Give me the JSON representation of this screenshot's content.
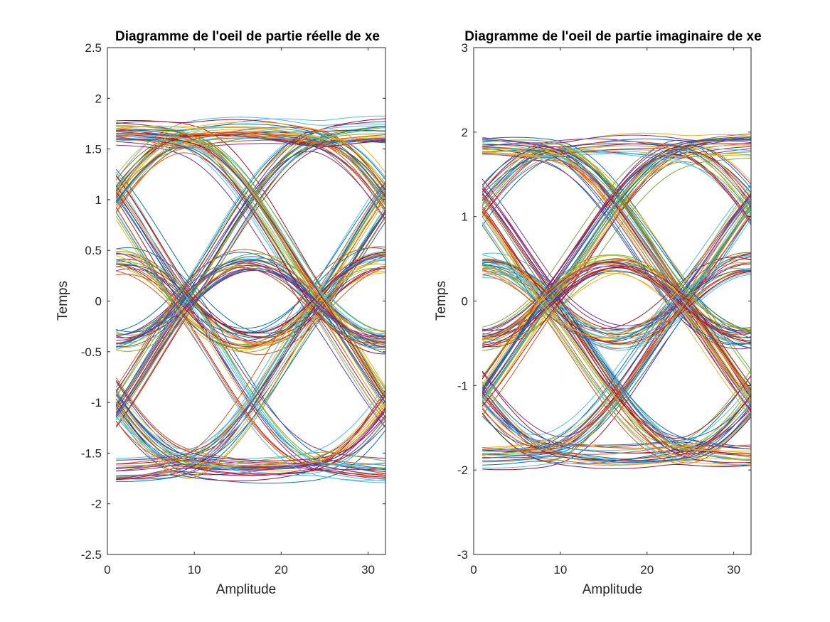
{
  "chart_data": [
    {
      "type": "line",
      "title": "Diagramme de l'oeil de partie réelle de xe",
      "xlabel": "Amplitude",
      "ylabel": "Temps",
      "xlim": [
        0,
        32
      ],
      "ylim": [
        -2.5,
        2.5
      ],
      "xticks": [
        "0",
        "10",
        "20",
        "30"
      ],
      "yticks": [
        "2.5",
        "2",
        "1.5",
        "1",
        "0.5",
        "0",
        "-0.5",
        "-1",
        "-1.5",
        "-2",
        "-2.5"
      ],
      "grid": false,
      "trace_samples": 32,
      "trace_count": 200,
      "trace_symbol_levels": [
        -1,
        1
      ],
      "trace_x_range": [
        1,
        32
      ],
      "trace_pattern": "eye diagram; crossings near x=1, x=16, x=32; eye opening centered near x=8 and x=24"
    },
    {
      "type": "line",
      "title": "Diagramme de l'oeil de partie imaginaire de xe",
      "xlabel": "Amplitude",
      "ylabel": "Temps",
      "xlim": [
        0,
        32
      ],
      "ylim": [
        -3,
        3
      ],
      "xticks": [
        "0",
        "10",
        "20",
        "30"
      ],
      "yticks": [
        "3",
        "2",
        "1",
        "0",
        "-1",
        "-2",
        "-3"
      ],
      "grid": false,
      "trace_samples": 32,
      "trace_count": 200,
      "trace_symbol_levels": [
        -1,
        1
      ],
      "trace_x_range": [
        1,
        32
      ],
      "trace_pattern": "eye diagram; crossings near x=1, x=16, x=32; eye opening centered near x=8 and x=24"
    }
  ],
  "colors": [
    "#0072BD",
    "#D95319",
    "#EDB120",
    "#7E2F8E",
    "#77AC30",
    "#4DBEEE",
    "#A2142F"
  ]
}
